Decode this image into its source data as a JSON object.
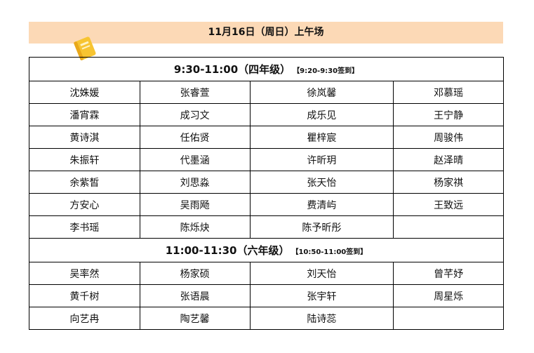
{
  "header": {
    "title": "11月16日（周日）上午场",
    "icon": "notebook-icon",
    "background": "#fcd9b6"
  },
  "sessions": [
    {
      "time": "9:30-11:00（四年级）",
      "checkin": "【9:20-9:30签到】",
      "rows": [
        [
          "沈姝媛",
          "张睿萱",
          "徐岚馨",
          "邓慕瑶"
        ],
        [
          "潘宵霖",
          "成习文",
          "成乐见",
          "王宁静"
        ],
        [
          "黄诗淇",
          "任佑贤",
          "瞿梓宸",
          "周骏伟"
        ],
        [
          "朱振轩",
          "代墨涵",
          "许昕玥",
          "赵泽晴"
        ],
        [
          "余紫皙",
          "刘思淼",
          "张天怡",
          "杨家祺"
        ],
        [
          "方安心",
          "吴雨飏",
          "费清屿",
          "王致远"
        ],
        [
          "李书瑶",
          "陈烁炔",
          "陈予昕彤",
          ""
        ]
      ]
    },
    {
      "time": "11:00-11:30（六年级）",
      "checkin": "【10:50-11:00签到】",
      "rows": [
        [
          "吴率然",
          "杨家硕",
          "刘天怡",
          "曾芊妤"
        ],
        [
          "黄千树",
          "张语晨",
          "张宇轩",
          "周星烁"
        ],
        [
          "向艺冉",
          "陶艺馨",
          "陆诗蕊",
          ""
        ]
      ]
    }
  ]
}
